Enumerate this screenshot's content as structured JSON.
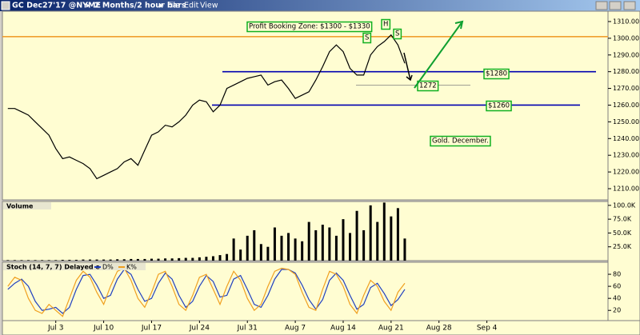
{
  "window": {
    "symbol": "GC Dec27'17 @NYME",
    "interval": "2 Months/2 hour bars",
    "menu": [
      "File",
      "Edit",
      "View"
    ]
  },
  "chart_data": [
    {
      "type": "line",
      "color": "#000000",
      "x": [
        -7,
        -6,
        -5,
        -4,
        -3,
        -2,
        -1,
        0,
        1,
        2,
        3,
        4,
        5,
        6,
        7,
        8,
        9,
        10,
        11,
        12,
        13,
        14,
        15,
        16,
        17,
        18,
        19,
        20,
        21,
        22,
        23,
        24,
        25,
        26,
        27,
        28,
        29,
        30,
        31,
        32,
        33,
        34,
        35,
        36,
        37,
        38,
        39,
        40,
        41,
        42,
        43,
        44,
        45,
        46,
        47,
        48,
        49,
        50,
        51
      ],
      "values": [
        1258,
        1258,
        1256,
        1254,
        1250,
        1246,
        1242,
        1234,
        1228,
        1229,
        1227,
        1225,
        1222,
        1216,
        1218,
        1220,
        1222,
        1226,
        1228,
        1224,
        1233,
        1242,
        1244,
        1248,
        1247,
        1250,
        1254,
        1260,
        1263,
        1262,
        1256,
        1260,
        1270,
        1272,
        1274,
        1276,
        1277,
        1278,
        1272,
        1274,
        1275,
        1270,
        1264,
        1266,
        1268,
        1275,
        1283,
        1292,
        1296,
        1292,
        1282,
        1278,
        1278,
        1290,
        1295,
        1298,
        1302,
        1296,
        1285
      ],
      "xlim": [
        -7.8,
        80.7
      ],
      "xticks": [
        {
          "value": 0,
          "label": "Jul 3"
        },
        {
          "value": 7,
          "label": "Jul 10"
        },
        {
          "value": 14,
          "label": "Jul 17"
        },
        {
          "value": 21,
          "label": "Jul 24"
        },
        {
          "value": 28,
          "label": "Jul 31"
        },
        {
          "value": 35,
          "label": "Aug 7"
        },
        {
          "value": 42,
          "label": "Aug 14"
        },
        {
          "value": 49,
          "label": "Aug 21"
        },
        {
          "value": 56,
          "label": "Aug 28"
        },
        {
          "value": 63,
          "label": "Sep 4"
        }
      ],
      "ylim": [
        1203.3,
        1316.2
      ],
      "yticks": [
        {
          "value": 1210,
          "label": "1210.00"
        },
        {
          "value": 1220,
          "label": "1220.00"
        },
        {
          "value": 1230,
          "label": "1230.00"
        },
        {
          "value": 1240,
          "label": "1240.00"
        },
        {
          "value": 1250,
          "label": "1250.00"
        },
        {
          "value": 1260,
          "label": "1260.00"
        },
        {
          "value": 1270,
          "label": "1270.00"
        },
        {
          "value": 1280,
          "label": "1280.00"
        },
        {
          "value": 1290,
          "label": "1290.00"
        },
        {
          "value": 1300,
          "label": "1300.00"
        },
        {
          "value": 1310,
          "label": "1310.00"
        }
      ],
      "levels": [
        {
          "value": 1301,
          "color": "#f0a030"
        },
        {
          "value": 1280,
          "color": "#0000b0"
        },
        {
          "value": 1260,
          "color": "#0000b0"
        },
        {
          "value": 1272,
          "color": "#808080"
        }
      ],
      "annotations": [
        "Profit Booking Zone: $1300 - $1330",
        "S",
        "H",
        "S",
        "$1280",
        "1272",
        "$1260",
        "Gold. December."
      ]
    },
    {
      "type": "bar",
      "title": "Volume",
      "color": "#000000",
      "values": [
        1000,
        1000,
        1000,
        1000,
        1000,
        1000,
        1000,
        1000,
        1500,
        1500,
        1500,
        2000,
        2000,
        2000,
        2000,
        2000,
        2500,
        2500,
        3000,
        3000,
        3000,
        3500,
        3500,
        4000,
        4000,
        4500,
        5000,
        5000,
        6000,
        7000,
        8000,
        10000,
        12000,
        40000,
        20000,
        45000,
        55000,
        30000,
        25000,
        60000,
        45000,
        50000,
        40000,
        35000,
        70000,
        55000,
        65000,
        60000,
        45000,
        75000,
        50000,
        90000,
        55000,
        100000,
        70000,
        105000,
        80000,
        95000,
        40000
      ],
      "ylim": [
        0,
        107000
      ],
      "yticks": [
        {
          "value": 25000,
          "label": "25.0K"
        },
        {
          "value": 50000,
          "label": "50.0K"
        },
        {
          "value": 75000,
          "label": "75.0K"
        },
        {
          "value": 100000,
          "label": "100.0K"
        }
      ]
    },
    {
      "type": "line",
      "title": "Stoch (14, 7, 7) Delayed e",
      "series": [
        {
          "name": "D%",
          "color": "#2040c0",
          "values": [
            55,
            65,
            72,
            60,
            35,
            20,
            22,
            25,
            15,
            25,
            55,
            78,
            80,
            62,
            40,
            45,
            72,
            88,
            80,
            55,
            35,
            40,
            65,
            82,
            72,
            45,
            25,
            35,
            60,
            78,
            68,
            42,
            45,
            72,
            78,
            55,
            30,
            25,
            45,
            72,
            88,
            88,
            82,
            62,
            38,
            22,
            38,
            70,
            82,
            70,
            45,
            22,
            30,
            58,
            65,
            48,
            28,
            38,
            55
          ]
        },
        {
          "name": "K%",
          "color": "#f0a020",
          "values": [
            60,
            75,
            70,
            40,
            20,
            15,
            30,
            20,
            10,
            40,
            70,
            85,
            75,
            50,
            30,
            60,
            85,
            90,
            70,
            40,
            25,
            50,
            80,
            85,
            60,
            30,
            20,
            45,
            75,
            80,
            55,
            30,
            60,
            85,
            70,
            40,
            20,
            30,
            60,
            85,
            90,
            88,
            80,
            50,
            25,
            20,
            55,
            85,
            80,
            60,
            30,
            15,
            45,
            70,
            60,
            35,
            20,
            50,
            65
          ]
        }
      ],
      "ylim": [
        3,
        100
      ],
      "yticks": [
        20,
        40,
        60,
        80
      ]
    }
  ]
}
